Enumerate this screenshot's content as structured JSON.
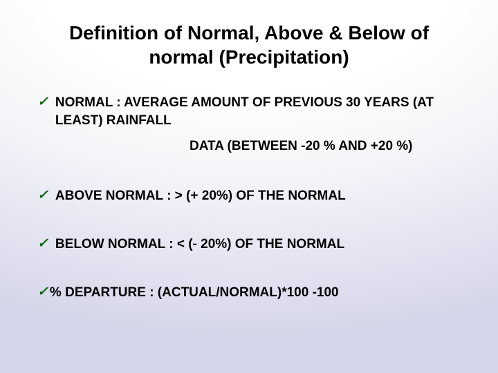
{
  "slide": {
    "background_gradient": {
      "type": "radial",
      "center_color": "#ffffff",
      "mid_color": "#e8e8f4",
      "edge_color": "#d6d6ea"
    },
    "title": "Definition of Normal, Above & Below of normal (Precipitation)",
    "title_fontsize": 28,
    "title_color": "#000000",
    "body_fontsize": 19,
    "body_color": "#000000",
    "check_color": "#0e6b0e",
    "bullets": {
      "b1": {
        "line1": "NORMAL  : AVERAGE AMOUNT OF PREVIOUS 30 YEARS (AT LEAST) RAINFALL",
        "line2": "DATA (BETWEEN -20 % AND +20 %)"
      },
      "b2": "ABOVE NORMAL  :  > (+ 20%) OF THE NORMAL",
      "b3": "BELOW NORMAL  :  < (- 20%) OF THE NORMAL",
      "b4": "% DEPARTURE       :  (ACTUAL/NORMAL)*100 -100"
    }
  }
}
